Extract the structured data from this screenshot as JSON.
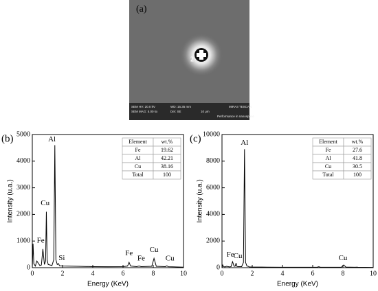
{
  "image": {
    "label": "(a)",
    "marker": "2",
    "info": [
      "SEM HV: 20.0 kV",
      "WD: 15.35 mm",
      "MIRA3 TESCAN",
      "SEM MAG: 5.00 kx",
      "Det: SE",
      "10 μm",
      "Performance in nanospace"
    ]
  },
  "chart_data": [
    {
      "type": "line",
      "panel_label": "(b)",
      "color": "#000000",
      "x": [
        0,
        0.05,
        0.1,
        0.2,
        0.3,
        0.5,
        0.6,
        0.7,
        0.8,
        0.88,
        0.93,
        0.98,
        1.05,
        1.3,
        1.42,
        1.49,
        1.56,
        1.65,
        1.74,
        1.8,
        2,
        3,
        4,
        5,
        6,
        6.3,
        6.4,
        6.5,
        6.9,
        7.06,
        7.2,
        7.9,
        8.05,
        8.2,
        8.8,
        8.9,
        9,
        10
      ],
      "values": [
        0,
        900,
        150,
        60,
        250,
        80,
        100,
        700,
        120,
        250,
        2100,
        300,
        120,
        80,
        300,
        4600,
        300,
        120,
        150,
        70,
        60,
        50,
        40,
        35,
        40,
        60,
        200,
        60,
        40,
        60,
        40,
        50,
        350,
        50,
        40,
        70,
        35,
        20
      ],
      "xlim": [
        0,
        10
      ],
      "xticks": [
        0,
        2,
        4,
        6,
        8,
        10
      ],
      "ylim": [
        0,
        5000
      ],
      "yticks": [
        0,
        1000,
        2000,
        3000,
        4000,
        5000
      ],
      "x_label": "Energy (KeV)",
      "y_label": "Intensity (u.a.)",
      "annotations": [
        {
          "text": "Al",
          "x": 1.3,
          "y": 4650
        },
        {
          "text": "Cu",
          "x": 0.85,
          "y": 2250
        },
        {
          "text": "Fe",
          "x": 0.55,
          "y": 850
        },
        {
          "text": "Si",
          "x": 1.95,
          "y": 200
        },
        {
          "text": "Fe",
          "x": 6.4,
          "y": 380
        },
        {
          "text": "Fe",
          "x": 7.2,
          "y": 180
        },
        {
          "text": "Cu",
          "x": 8.05,
          "y": 500
        },
        {
          "text": "Cu",
          "x": 9.1,
          "y": 180
        }
      ],
      "table": {
        "header": [
          "Element",
          "wt.%"
        ],
        "rows": [
          [
            "Fe",
            19.62
          ],
          [
            "Al",
            42.21
          ],
          [
            "Cu",
            38.16
          ],
          [
            "Total",
            100
          ]
        ]
      }
    },
    {
      "type": "line",
      "panel_label": "(c)",
      "color": "#000000",
      "x": [
        0,
        0.05,
        0.1,
        0.2,
        0.3,
        0.5,
        0.6,
        0.7,
        0.8,
        0.88,
        0.93,
        0.98,
        1.05,
        1.3,
        1.42,
        1.49,
        1.56,
        1.65,
        1.74,
        1.8,
        2,
        3,
        4,
        5,
        6,
        6.3,
        6.4,
        6.5,
        6.9,
        7.06,
        7.2,
        7.9,
        8.05,
        8.2,
        8.8,
        8.9,
        9,
        10
      ],
      "values": [
        0,
        200,
        80,
        60,
        100,
        60,
        80,
        450,
        100,
        120,
        350,
        100,
        80,
        80,
        400,
        8900,
        400,
        120,
        100,
        60,
        50,
        40,
        35,
        30,
        30,
        40,
        70,
        40,
        30,
        35,
        30,
        40,
        200,
        40,
        30,
        40,
        30,
        20
      ],
      "xlim": [
        0,
        10
      ],
      "xticks": [
        0,
        2,
        4,
        6,
        8,
        10
      ],
      "ylim": [
        0,
        10000
      ],
      "yticks": [
        0,
        2000,
        4000,
        6000,
        8000,
        10000
      ],
      "x_label": "Energy (KeV)",
      "y_label": "Intensity (u.a.)",
      "annotations": [
        {
          "text": "Al",
          "x": 1.49,
          "y": 9050
        },
        {
          "text": "Fe",
          "x": 0.55,
          "y": 650
        },
        {
          "text": "Cu",
          "x": 1.05,
          "y": 550
        },
        {
          "text": "Cu",
          "x": 8.0,
          "y": 400
        }
      ],
      "table": {
        "header": [
          "Element",
          "wt.%"
        ],
        "rows": [
          [
            "Fe",
            27.6
          ],
          [
            "Al",
            41.8
          ],
          [
            "Cu",
            30.5
          ],
          [
            "Total",
            100
          ]
        ]
      }
    }
  ]
}
